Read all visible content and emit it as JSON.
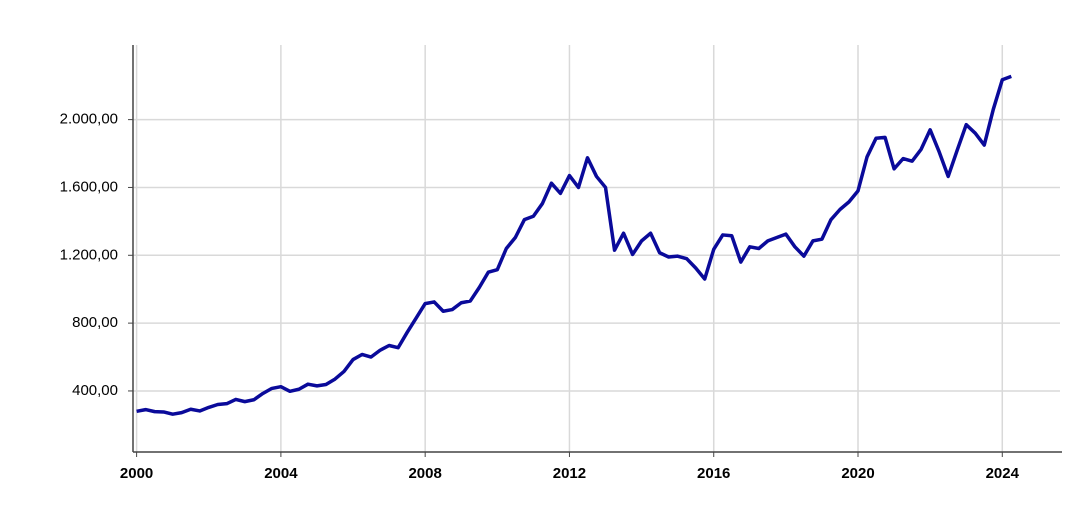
{
  "chart_data": {
    "type": "line",
    "color": "#0a0a9a",
    "grid": true,
    "x": [
      2000,
      2000.25,
      2000.5,
      2000.75,
      2001,
      2001.25,
      2001.5,
      2001.75,
      2002,
      2002.25,
      2002.5,
      2002.75,
      2003,
      2003.25,
      2003.5,
      2003.75,
      2004,
      2004.25,
      2004.5,
      2004.75,
      2005,
      2005.25,
      2005.5,
      2005.75,
      2006,
      2006.25,
      2006.5,
      2006.75,
      2007,
      2007.25,
      2007.5,
      2007.75,
      2008,
      2008.25,
      2008.5,
      2008.75,
      2009,
      2009.25,
      2009.5,
      2009.75,
      2010,
      2010.25,
      2010.5,
      2010.75,
      2011,
      2011.25,
      2011.5,
      2011.75,
      2012,
      2012.25,
      2012.5,
      2012.75,
      2013,
      2013.25,
      2013.5,
      2013.75,
      2014,
      2014.25,
      2014.5,
      2014.75,
      2015,
      2015.25,
      2015.5,
      2015.75,
      2016,
      2016.25,
      2016.5,
      2016.75,
      2017,
      2017.25,
      2017.5,
      2017.75,
      2018,
      2018.25,
      2018.5,
      2018.75,
      2019,
      2019.25,
      2019.5,
      2019.75,
      2020,
      2020.25,
      2020.5,
      2020.75,
      2021,
      2021.25,
      2021.5,
      2021.75,
      2022,
      2022.25,
      2022.5,
      2022.75,
      2023,
      2023.25,
      2023.5,
      2023.75,
      2024,
      2024.25
    ],
    "values": [
      280,
      290,
      278,
      276,
      263,
      272,
      292,
      282,
      303,
      320,
      325,
      350,
      337,
      348,
      385,
      415,
      425,
      398,
      410,
      440,
      430,
      438,
      470,
      515,
      585,
      615,
      600,
      640,
      668,
      655,
      745,
      830,
      915,
      925,
      870,
      880,
      920,
      930,
      1010,
      1100,
      1115,
      1240,
      1305,
      1410,
      1430,
      1505,
      1625,
      1565,
      1670,
      1600,
      1775,
      1665,
      1600,
      1230,
      1330,
      1205,
      1285,
      1330,
      1215,
      1190,
      1195,
      1180,
      1125,
      1060,
      1235,
      1320,
      1315,
      1160,
      1250,
      1240,
      1285,
      1305,
      1325,
      1250,
      1195,
      1285,
      1295,
      1410,
      1470,
      1515,
      1580,
      1780,
      1890,
      1895,
      1710,
      1770,
      1755,
      1825,
      1940,
      1810,
      1665,
      1820,
      1970,
      1920,
      1850,
      2060,
      2235,
      2255
    ],
    "xlim": [
      1999.9,
      2025.6
    ],
    "xticks": [
      2000,
      2004,
      2008,
      2012,
      2016,
      2020,
      2024
    ],
    "ylim": [
      40,
      2440
    ],
    "yticks": [
      {
        "value": 400,
        "label": "400,00"
      },
      {
        "value": 800,
        "label": "800,00"
      },
      {
        "value": 1200,
        "label": "1.200,00"
      },
      {
        "value": 1600,
        "label": "1.600,00"
      },
      {
        "value": 2000,
        "label": "2.000,00"
      }
    ]
  }
}
